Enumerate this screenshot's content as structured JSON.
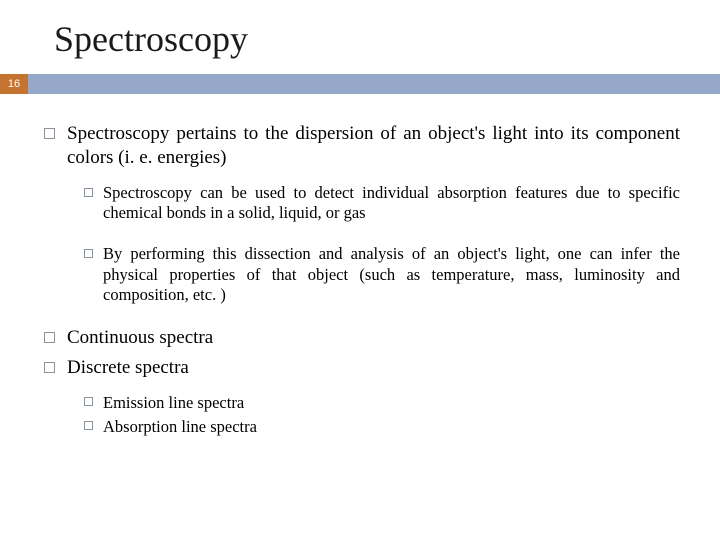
{
  "title": "Spectroscopy",
  "page_number": "16",
  "colors": {
    "badge_bg": "#c47430",
    "accent_bar": "#95a8c9",
    "bullet_border": "#8b9299",
    "text": "#000000",
    "background": "#ffffff"
  },
  "bullets": {
    "b1": "Spectroscopy pertains to the dispersion of an object's light into its component colors (i. e. energies)",
    "b1_1": "Spectroscopy can be used to detect individual absorption features due to specific chemical bonds in a solid, liquid, or gas",
    "b1_2": "By performing this dissection and analysis of an object's light, one can infer the physical properties of that object (such as temperature, mass, luminosity and composition, etc. )",
    "b2": "Continuous spectra",
    "b3": "Discrete spectra",
    "b3_1": "Emission line spectra",
    "b3_2": "Absorption line spectra"
  },
  "typography": {
    "title_fontsize": 36,
    "l1_fontsize": 19,
    "l2_fontsize": 16.5,
    "font_family": "Georgia, serif"
  }
}
